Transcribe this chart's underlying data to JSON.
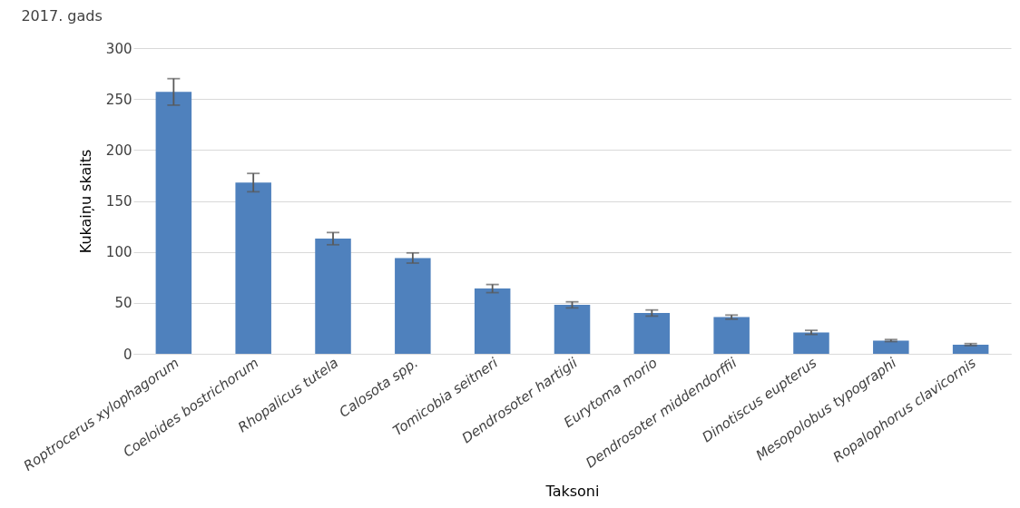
{
  "chart_data": {
    "type": "bar",
    "title": "2017. gads",
    "xlabel": "Taksoni",
    "ylabel": "Kukaiņu skaits",
    "categories": [
      "Roptrocerus xylophagorum",
      "Coeloides bostrichorum",
      "Rhopalicus tutela",
      "Calosota spp.",
      "Tomicobia seitneri",
      "Dendrosoter hartigii",
      "Eurytoma morio",
      "Dendrosoter middendorffii",
      "Dinotiscus eupterus",
      "Mesopolobus typographi",
      "Ropalophorus clavicornis"
    ],
    "values": [
      257,
      168,
      113,
      94,
      64,
      48,
      40,
      36,
      21,
      13,
      9
    ],
    "errors": [
      13,
      9,
      6,
      5,
      4,
      3,
      3,
      2,
      2,
      1,
      1
    ],
    "color": "#4f81bd",
    "ylim": [
      0,
      300
    ],
    "yticks": [
      0,
      50,
      100,
      150,
      200,
      250,
      300
    ],
    "grid": "y"
  }
}
